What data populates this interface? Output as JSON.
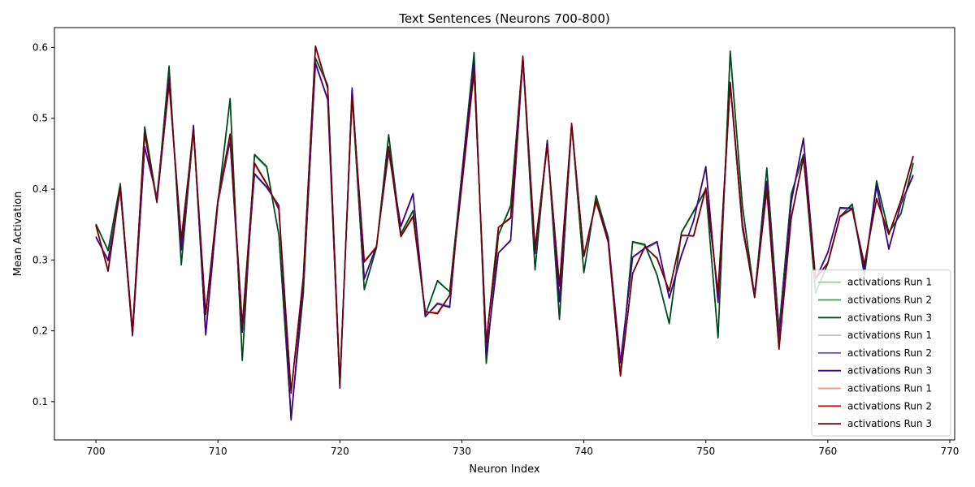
{
  "chart_data": {
    "type": "line",
    "title": "Text Sentences (Neurons 700-800)",
    "xlabel": "Neuron Index",
    "ylabel": "Mean Activation",
    "xlim": [
      696.6,
      770.4
    ],
    "ylim": [
      0.046,
      0.628
    ],
    "xticks": [
      700,
      710,
      720,
      730,
      740,
      750,
      760,
      770
    ],
    "yticks": [
      0.1,
      0.2,
      0.3,
      0.4,
      0.5,
      0.6
    ],
    "grid": false,
    "legend_position": "bottom-right",
    "x": [
      700,
      701,
      702,
      703,
      704,
      705,
      706,
      707,
      708,
      709,
      710,
      711,
      712,
      713,
      714,
      715,
      716,
      717,
      718,
      719,
      720,
      721,
      722,
      723,
      724,
      725,
      726,
      727,
      728,
      729,
      730,
      731,
      732,
      733,
      734,
      735,
      736,
      737,
      738,
      739,
      740,
      741,
      742,
      743,
      744,
      745,
      746,
      747,
      748,
      749,
      750,
      751,
      752,
      753,
      754,
      755,
      756,
      757,
      758,
      759,
      760,
      761,
      762,
      763,
      764,
      765,
      766,
      767
    ],
    "series": [
      {
        "name": "activations Run 1",
        "color": "#98d594",
        "values": [
          0.35,
          0.315,
          0.405,
          0.196,
          0.485,
          0.386,
          0.57,
          0.296,
          0.485,
          0.198,
          0.378,
          0.525,
          0.16,
          0.447,
          0.43,
          0.335,
          0.08,
          0.25,
          0.584,
          0.545,
          0.125,
          0.535,
          0.26,
          0.318,
          0.475,
          0.335,
          0.368,
          0.222,
          0.27,
          0.255,
          0.42,
          0.59,
          0.156,
          0.336,
          0.378,
          0.585,
          0.288,
          0.468,
          0.218,
          0.49,
          0.283,
          0.39,
          0.332,
          0.138,
          0.325,
          0.32,
          0.278,
          0.212,
          0.338,
          0.368,
          0.398,
          0.192,
          0.592,
          0.375,
          0.248,
          0.428,
          0.2,
          0.392,
          0.448,
          0.252,
          0.295,
          0.36,
          0.377,
          0.28,
          0.41,
          0.338,
          0.365,
          0.435
        ]
      },
      {
        "name": "activations Run 2",
        "color": "#32a354",
        "values": [
          0.35,
          0.314,
          0.406,
          0.195,
          0.486,
          0.385,
          0.572,
          0.294,
          0.484,
          0.197,
          0.38,
          0.526,
          0.159,
          0.448,
          0.431,
          0.335,
          0.078,
          0.252,
          0.584,
          0.546,
          0.125,
          0.534,
          0.259,
          0.318,
          0.476,
          0.336,
          0.369,
          0.222,
          0.27,
          0.255,
          0.421,
          0.591,
          0.155,
          0.336,
          0.377,
          0.586,
          0.287,
          0.468,
          0.217,
          0.491,
          0.283,
          0.39,
          0.332,
          0.138,
          0.325,
          0.321,
          0.278,
          0.211,
          0.338,
          0.368,
          0.399,
          0.191,
          0.593,
          0.376,
          0.248,
          0.429,
          0.201,
          0.392,
          0.448,
          0.253,
          0.295,
          0.36,
          0.378,
          0.279,
          0.411,
          0.338,
          0.365,
          0.436
        ]
      },
      {
        "name": "activations Run 3",
        "color": "#00441b",
        "values": [
          0.351,
          0.313,
          0.408,
          0.194,
          0.488,
          0.384,
          0.574,
          0.293,
          0.483,
          0.196,
          0.381,
          0.528,
          0.158,
          0.449,
          0.432,
          0.335,
          0.077,
          0.253,
          0.585,
          0.547,
          0.125,
          0.533,
          0.258,
          0.317,
          0.477,
          0.337,
          0.37,
          0.222,
          0.271,
          0.255,
          0.422,
          0.593,
          0.154,
          0.335,
          0.376,
          0.587,
          0.286,
          0.469,
          0.216,
          0.492,
          0.282,
          0.391,
          0.332,
          0.137,
          0.326,
          0.322,
          0.279,
          0.21,
          0.339,
          0.369,
          0.4,
          0.19,
          0.595,
          0.377,
          0.248,
          0.43,
          0.202,
          0.393,
          0.449,
          0.254,
          0.295,
          0.361,
          0.379,
          0.278,
          0.412,
          0.339,
          0.366,
          0.437
        ]
      },
      {
        "name": "activations Run 1",
        "color": "#bcbddc",
        "values": [
          0.331,
          0.302,
          0.397,
          0.195,
          0.458,
          0.39,
          0.555,
          0.316,
          0.488,
          0.196,
          0.38,
          0.468,
          0.2,
          0.42,
          0.402,
          0.378,
          0.076,
          0.268,
          0.576,
          0.525,
          0.12,
          0.541,
          0.275,
          0.32,
          0.451,
          0.346,
          0.392,
          0.22,
          0.24,
          0.235,
          0.421,
          0.576,
          0.17,
          0.31,
          0.327,
          0.582,
          0.312,
          0.465,
          0.244,
          0.487,
          0.306,
          0.381,
          0.33,
          0.155,
          0.303,
          0.315,
          0.324,
          0.248,
          0.308,
          0.355,
          0.43,
          0.242,
          0.547,
          0.344,
          0.252,
          0.409,
          0.191,
          0.38,
          0.47,
          0.272,
          0.31,
          0.372,
          0.372,
          0.288,
          0.403,
          0.318,
          0.378,
          0.418
        ]
      },
      {
        "name": "activations Run 2",
        "color": "#6a51a3",
        "values": [
          0.332,
          0.3,
          0.398,
          0.194,
          0.459,
          0.389,
          0.556,
          0.315,
          0.489,
          0.195,
          0.38,
          0.468,
          0.199,
          0.421,
          0.402,
          0.377,
          0.075,
          0.267,
          0.577,
          0.526,
          0.12,
          0.542,
          0.274,
          0.32,
          0.452,
          0.347,
          0.393,
          0.22,
          0.239,
          0.234,
          0.421,
          0.577,
          0.168,
          0.31,
          0.327,
          0.583,
          0.31,
          0.466,
          0.242,
          0.488,
          0.306,
          0.381,
          0.33,
          0.155,
          0.304,
          0.316,
          0.325,
          0.247,
          0.307,
          0.355,
          0.431,
          0.241,
          0.548,
          0.344,
          0.252,
          0.41,
          0.19,
          0.381,
          0.471,
          0.272,
          0.31,
          0.373,
          0.372,
          0.287,
          0.404,
          0.316,
          0.379,
          0.419
        ]
      },
      {
        "name": "activations Run 3",
        "color": "#3f007d",
        "values": [
          0.333,
          0.299,
          0.399,
          0.193,
          0.46,
          0.388,
          0.557,
          0.314,
          0.49,
          0.194,
          0.381,
          0.469,
          0.198,
          0.422,
          0.403,
          0.376,
          0.074,
          0.266,
          0.578,
          0.527,
          0.119,
          0.543,
          0.273,
          0.32,
          0.453,
          0.348,
          0.394,
          0.22,
          0.238,
          0.233,
          0.422,
          0.578,
          0.167,
          0.31,
          0.328,
          0.584,
          0.309,
          0.468,
          0.241,
          0.489,
          0.306,
          0.382,
          0.33,
          0.155,
          0.304,
          0.317,
          0.326,
          0.246,
          0.306,
          0.356,
          0.432,
          0.24,
          0.549,
          0.345,
          0.252,
          0.411,
          0.189,
          0.382,
          0.472,
          0.273,
          0.311,
          0.374,
          0.373,
          0.286,
          0.405,
          0.315,
          0.38,
          0.42
        ]
      },
      {
        "name": "activations Run 1",
        "color": "#fc9272",
        "values": [
          0.348,
          0.286,
          0.402,
          0.2,
          0.477,
          0.383,
          0.548,
          0.33,
          0.481,
          0.225,
          0.383,
          0.476,
          0.209,
          0.435,
          0.407,
          0.372,
          0.114,
          0.276,
          0.6,
          0.541,
          0.126,
          0.53,
          0.298,
          0.319,
          0.458,
          0.333,
          0.36,
          0.227,
          0.226,
          0.25,
          0.404,
          0.565,
          0.185,
          0.346,
          0.36,
          0.586,
          0.318,
          0.46,
          0.265,
          0.491,
          0.305,
          0.383,
          0.325,
          0.137,
          0.281,
          0.318,
          0.303,
          0.256,
          0.334,
          0.333,
          0.4,
          0.255,
          0.549,
          0.35,
          0.247,
          0.398,
          0.176,
          0.358,
          0.444,
          0.273,
          0.296,
          0.36,
          0.372,
          0.294,
          0.385,
          0.336,
          0.383,
          0.446
        ]
      },
      {
        "name": "activations Run 2",
        "color": "#cb181d",
        "values": [
          0.349,
          0.285,
          0.403,
          0.2,
          0.478,
          0.382,
          0.549,
          0.329,
          0.482,
          0.224,
          0.384,
          0.477,
          0.208,
          0.436,
          0.407,
          0.372,
          0.113,
          0.276,
          0.601,
          0.542,
          0.126,
          0.531,
          0.298,
          0.319,
          0.459,
          0.333,
          0.361,
          0.227,
          0.225,
          0.25,
          0.405,
          0.566,
          0.184,
          0.346,
          0.36,
          0.587,
          0.317,
          0.461,
          0.264,
          0.492,
          0.305,
          0.383,
          0.325,
          0.137,
          0.281,
          0.318,
          0.303,
          0.256,
          0.335,
          0.334,
          0.401,
          0.254,
          0.55,
          0.351,
          0.247,
          0.399,
          0.175,
          0.359,
          0.444,
          0.273,
          0.296,
          0.361,
          0.372,
          0.294,
          0.386,
          0.336,
          0.384,
          0.446
        ]
      },
      {
        "name": "activations Run 3",
        "color": "#67000d",
        "values": [
          0.349,
          0.284,
          0.404,
          0.199,
          0.479,
          0.381,
          0.55,
          0.328,
          0.483,
          0.223,
          0.385,
          0.478,
          0.207,
          0.437,
          0.408,
          0.371,
          0.112,
          0.275,
          0.602,
          0.543,
          0.125,
          0.532,
          0.297,
          0.318,
          0.46,
          0.333,
          0.362,
          0.227,
          0.224,
          0.25,
          0.406,
          0.567,
          0.183,
          0.346,
          0.359,
          0.588,
          0.316,
          0.462,
          0.263,
          0.493,
          0.305,
          0.384,
          0.325,
          0.136,
          0.281,
          0.319,
          0.302,
          0.256,
          0.335,
          0.334,
          0.402,
          0.253,
          0.551,
          0.352,
          0.247,
          0.4,
          0.174,
          0.36,
          0.445,
          0.274,
          0.296,
          0.362,
          0.372,
          0.293,
          0.387,
          0.336,
          0.385,
          0.447
        ]
      }
    ]
  }
}
